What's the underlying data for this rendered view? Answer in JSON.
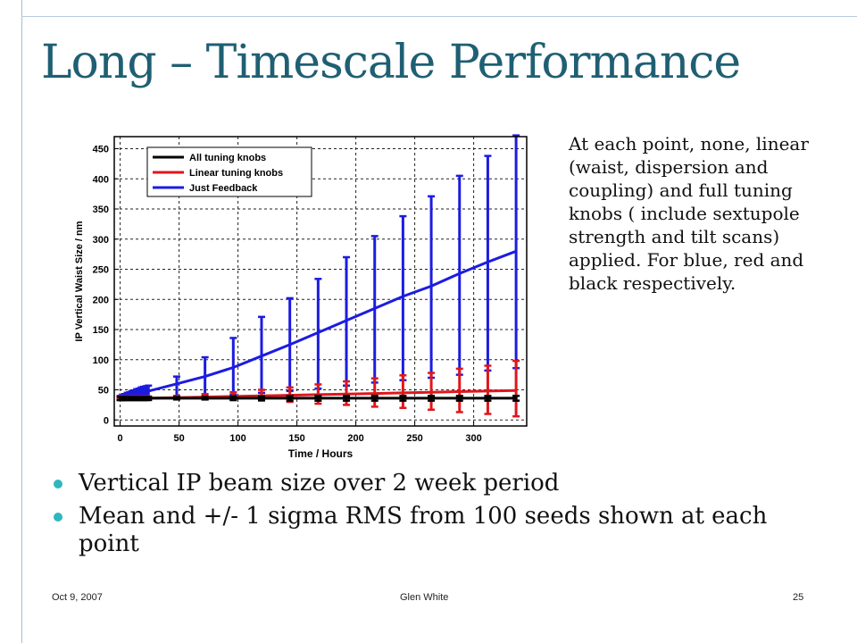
{
  "slide": {
    "title": "Long – Timescale Performance",
    "side_text_lines": [
      "At each point, none, linear",
      "(waist, dispersion and",
      "coupling) and full tuning",
      "knobs ( include sextupole",
      "strength and tilt scans)",
      "applied. For blue, red and",
      "black respectively."
    ],
    "bullets": [
      {
        "lines": [
          "Vertical IP beam size over 2 week period"
        ]
      },
      {
        "lines": [
          "Mean and +/- 1 sigma RMS from 100 seeds shown at each",
          "point"
        ]
      }
    ],
    "footer": {
      "date": "Oct 9, 2007",
      "author": "Glen White",
      "page": "25"
    },
    "colors": {
      "title": "#1f5f73",
      "bullet": "#2eb7bf"
    }
  },
  "chart_data": {
    "type": "line",
    "xlabel": "Time / Hours",
    "ylabel": "IP Vertical Waist Size / nm",
    "xlim": [
      -5,
      345
    ],
    "ylim": [
      -10,
      470
    ],
    "xticks": [
      0,
      50,
      100,
      150,
      200,
      250,
      300
    ],
    "yticks": [
      0,
      50,
      100,
      150,
      200,
      250,
      300,
      350,
      400,
      450
    ],
    "grid": true,
    "legend_position": "top-left",
    "x": [
      0,
      2,
      4,
      6,
      8,
      10,
      12,
      14,
      16,
      18,
      20,
      22,
      24,
      48,
      72,
      96,
      120,
      144,
      168,
      192,
      216,
      240,
      264,
      288,
      312,
      336
    ],
    "series": [
      {
        "name": "All tuning knobs",
        "color": "#000000",
        "values": [
          36,
          36,
          36,
          36,
          36,
          36,
          36,
          36,
          36,
          36,
          36,
          36,
          36,
          36,
          36,
          36,
          36,
          36,
          36,
          36,
          36,
          36,
          36,
          36,
          36,
          36
        ],
        "err_lo": [
          33,
          33,
          33,
          33,
          33,
          33,
          33,
          33,
          33,
          33,
          33,
          33,
          33,
          34,
          34,
          33,
          33,
          32,
          32,
          32,
          32,
          32,
          32,
          32,
          32,
          32
        ],
        "err_hi": [
          38,
          38,
          38,
          38,
          38,
          38,
          38,
          38,
          38,
          38,
          38,
          38,
          38,
          38,
          38,
          39,
          39,
          40,
          40,
          40,
          40,
          40,
          40,
          40,
          40,
          40
        ]
      },
      {
        "name": "Linear tuning knobs",
        "color": "#e0161b",
        "values": [
          36,
          36,
          36,
          36,
          36,
          36,
          36,
          36,
          36,
          36,
          36,
          36,
          36,
          37,
          38,
          39,
          40,
          41,
          42,
          43,
          44,
          45,
          46,
          47,
          48,
          49
        ],
        "err_lo": [
          34,
          34,
          34,
          34,
          34,
          34,
          34,
          34,
          34,
          34,
          34,
          34,
          34,
          35,
          34,
          33,
          32,
          30,
          27,
          25,
          22,
          20,
          17,
          13,
          10,
          6
        ],
        "err_hi": [
          39,
          39,
          39,
          39,
          39,
          39,
          39,
          39,
          39,
          39,
          39,
          39,
          39,
          40,
          43,
          46,
          50,
          54,
          59,
          64,
          69,
          74,
          78,
          85,
          90,
          98
        ]
      },
      {
        "name": "Just Feedback",
        "color": "#1c1ce0",
        "values": [
          36,
          37,
          38,
          39,
          40,
          41,
          42,
          43,
          44,
          45,
          46,
          47,
          48,
          60,
          72,
          87,
          106,
          125,
          145,
          165,
          185,
          205,
          222,
          243,
          262,
          280
        ],
        "err_lo": [
          33,
          33,
          34,
          34,
          35,
          35,
          36,
          36,
          36,
          37,
          37,
          38,
          38,
          40,
          40,
          42,
          45,
          48,
          52,
          57,
          62,
          66,
          70,
          75,
          82,
          86
        ],
        "err_hi": [
          40,
          42,
          43,
          45,
          46,
          48,
          49,
          51,
          52,
          54,
          55,
          56,
          57,
          72,
          104,
          136,
          171,
          202,
          234,
          270,
          305,
          338,
          371,
          405,
          438,
          472
        ]
      }
    ]
  }
}
